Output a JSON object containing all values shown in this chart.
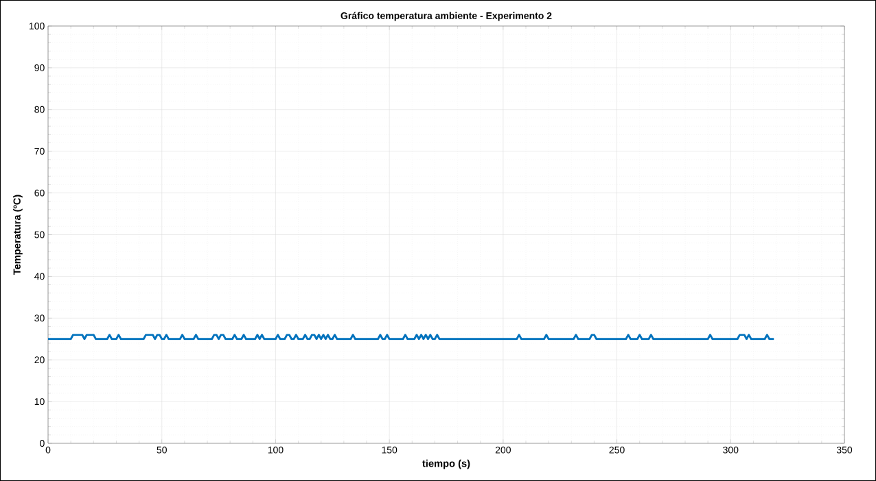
{
  "chart_data": {
    "type": "line",
    "title": "Gráfico temperatura ambiente - Experimento 2",
    "xlabel": "tiempo (s)",
    "ylabel": "Temperatura (ºC)",
    "xlim": [
      0,
      350
    ],
    "ylim": [
      0,
      100
    ],
    "xticks": [
      0,
      50,
      100,
      150,
      200,
      250,
      300,
      350
    ],
    "yticks": [
      0,
      10,
      20,
      30,
      40,
      50,
      60,
      70,
      80,
      90,
      100
    ],
    "grid": true,
    "line_style": "solid",
    "series": [
      {
        "color": "#0072bd",
        "x": [
          0,
          10,
          11,
          15,
          16,
          17,
          20,
          21,
          26,
          27,
          28,
          30,
          31,
          32,
          42,
          43,
          46,
          47,
          48,
          49,
          50,
          51,
          52,
          53,
          58,
          59,
          60,
          64,
          65,
          66,
          72,
          73,
          74,
          75,
          76,
          77,
          78,
          81,
          82,
          83,
          85,
          86,
          87,
          91,
          92,
          93,
          94,
          95,
          100,
          101,
          102,
          104,
          105,
          106,
          107,
          108,
          109,
          110,
          112,
          113,
          114,
          115,
          116,
          117,
          118,
          119,
          120,
          121,
          122,
          123,
          124,
          125,
          126,
          127,
          133,
          134,
          135,
          145,
          146,
          147,
          148,
          149,
          150,
          156,
          157,
          158,
          161,
          162,
          163,
          164,
          165,
          166,
          167,
          168,
          169,
          170,
          171,
          172,
          206,
          207,
          208,
          218,
          219,
          220,
          231,
          232,
          233,
          238,
          239,
          240,
          241,
          254,
          255,
          256,
          259,
          260,
          261,
          264,
          265,
          266,
          290,
          291,
          292,
          303,
          304,
          306,
          307,
          308,
          309,
          315,
          316,
          317,
          319
        ],
        "values": [
          25,
          25,
          26,
          26,
          25,
          26,
          26,
          25,
          25,
          26,
          25,
          25,
          26,
          25,
          25,
          26,
          26,
          25,
          26,
          26,
          25,
          25,
          26,
          25,
          25,
          26,
          25,
          25,
          26,
          25,
          25,
          26,
          26,
          25,
          26,
          26,
          25,
          25,
          26,
          25,
          25,
          26,
          25,
          25,
          26,
          25,
          26,
          25,
          25,
          26,
          25,
          25,
          26,
          26,
          25,
          25,
          26,
          25,
          25,
          26,
          25,
          25,
          26,
          26,
          25,
          26,
          25,
          26,
          25,
          26,
          25,
          25,
          26,
          25,
          25,
          26,
          25,
          25,
          26,
          25,
          25,
          26,
          25,
          25,
          26,
          25,
          25,
          26,
          25,
          26,
          25,
          26,
          25,
          26,
          25,
          25,
          26,
          25,
          25,
          26,
          25,
          25,
          26,
          25,
          25,
          26,
          25,
          25,
          26,
          26,
          25,
          25,
          26,
          25,
          25,
          26,
          25,
          25,
          26,
          25,
          25,
          26,
          25,
          25,
          26,
          26,
          25,
          26,
          25,
          25,
          26,
          25,
          25
        ]
      }
    ]
  }
}
